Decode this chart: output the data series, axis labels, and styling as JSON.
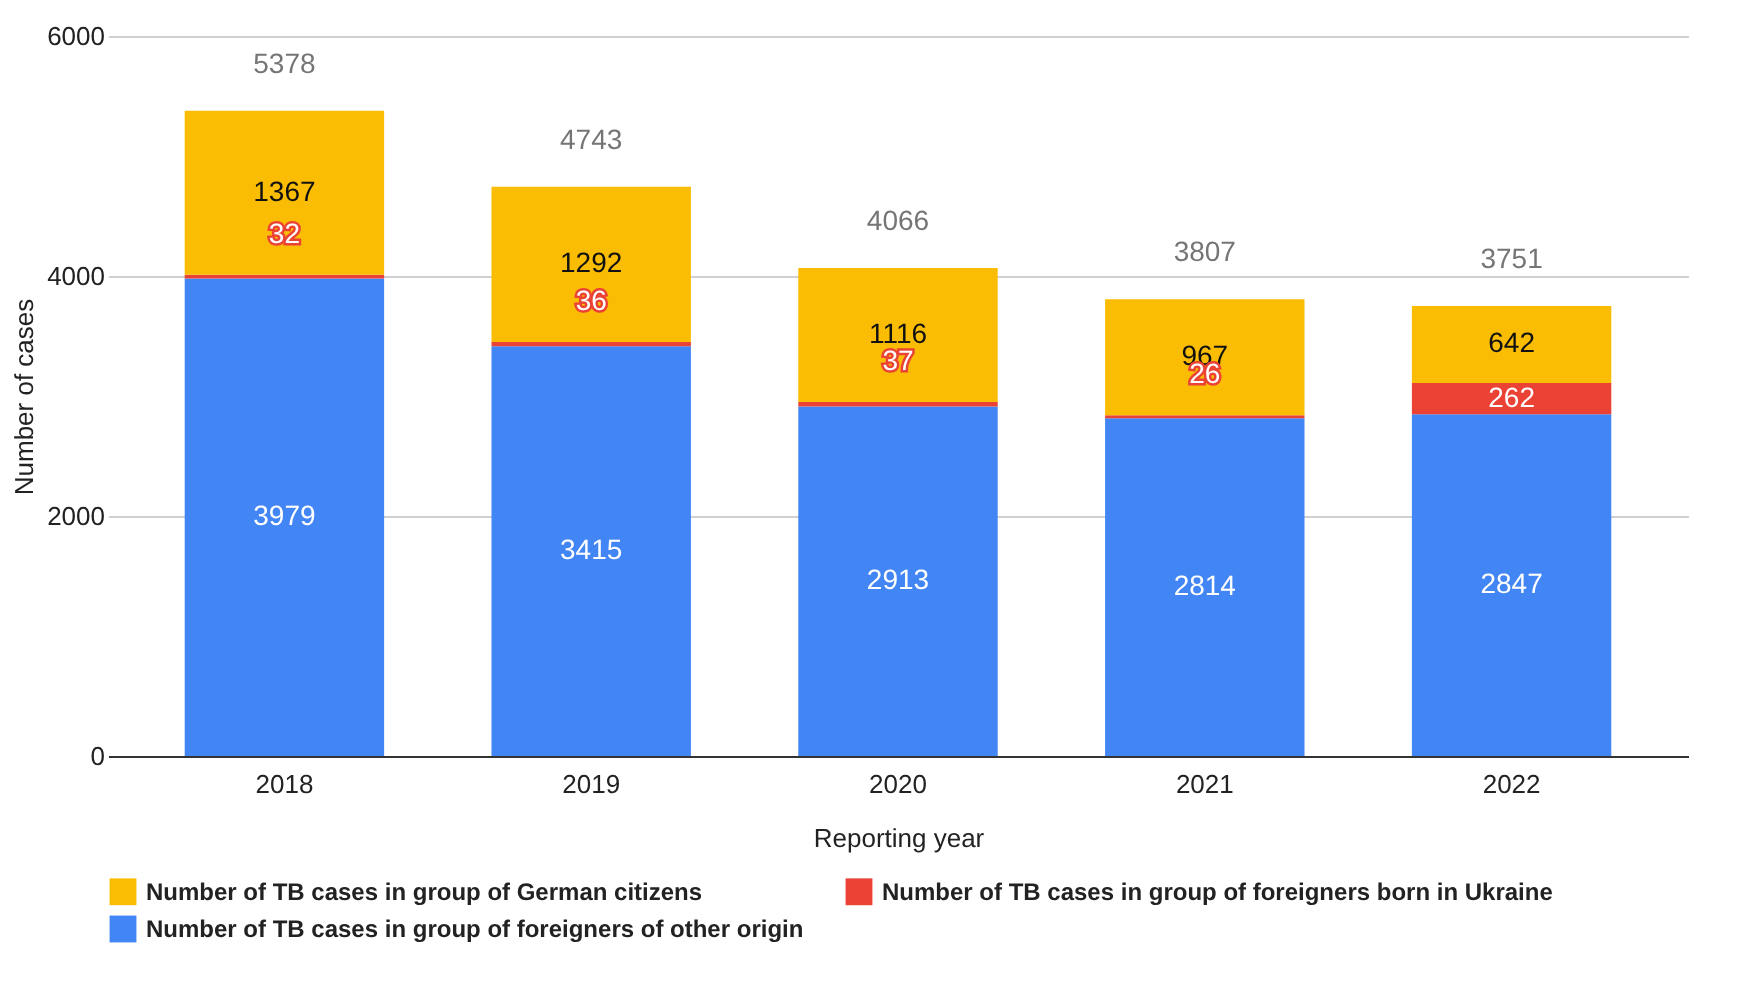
{
  "chart_data": {
    "type": "bar",
    "stacked": true,
    "xlabel": "Reporting year",
    "ylabel": "Number of cases",
    "categories": [
      "2018",
      "2019",
      "2020",
      "2021",
      "2022"
    ],
    "series": [
      {
        "name": "Number of TB cases in group of foreigners of other origin",
        "color": "#4285f4",
        "values": [
          3979,
          3415,
          2913,
          2814,
          2847
        ]
      },
      {
        "name": "Number of TB cases in group of foreigners born in Ukraine",
        "color": "#ea4335",
        "values": [
          32,
          36,
          37,
          26,
          262
        ]
      },
      {
        "name": "Number of TB cases in group of German citizens",
        "color": "#fbbc04",
        "values": [
          1367,
          1292,
          1116,
          967,
          642
        ]
      }
    ],
    "totals": [
      "5378",
      "4743",
      "4066",
      "3807",
      "3751"
    ],
    "data_labels": true,
    "ylim": [
      0,
      6000
    ],
    "yticks": [
      0,
      2000,
      4000,
      6000
    ],
    "grid": "y",
    "legend": "bottom"
  }
}
